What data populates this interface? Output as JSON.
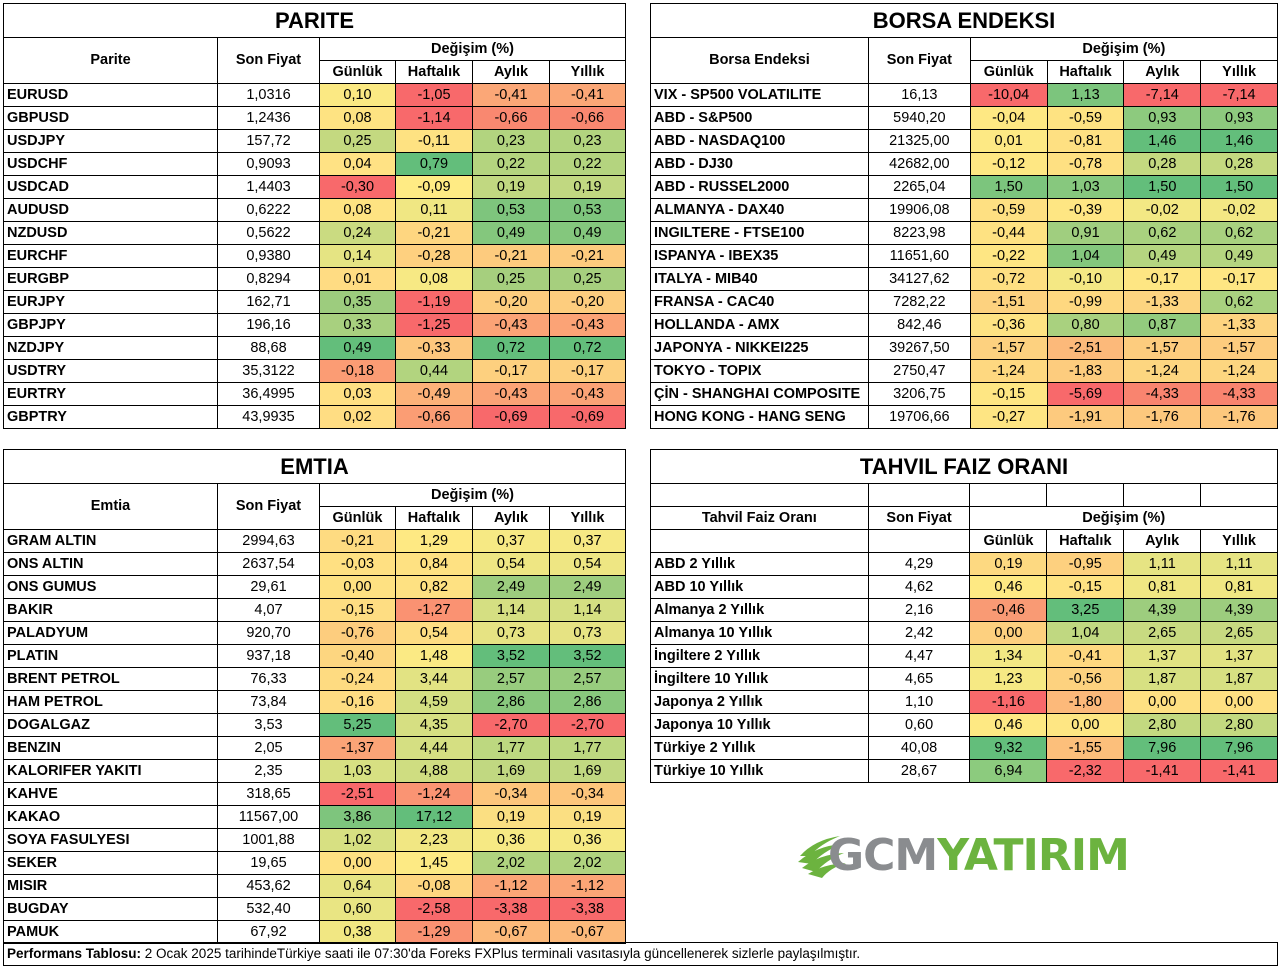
{
  "headers": {
    "degisim": "Değişim (%)",
    "son_fiyat": "Son Fiyat",
    "gunluk": "Günlük",
    "haftalik": "Haftalık",
    "aylik": "Aylık",
    "yillik": "Yıllık"
  },
  "parite": {
    "title": "PARITE",
    "col_name": "Parite",
    "rows": [
      {
        "name": "EURUSD",
        "price": "1,0316",
        "v": [
          "0,10",
          "-1,05",
          "-0,41",
          "-0,41"
        ],
        "c": [
          "#fbe983",
          "#f8696b",
          "#fba777",
          "#fba777"
        ]
      },
      {
        "name": "GBPUSD",
        "price": "1,2436",
        "v": [
          "0,08",
          "-1,14",
          "-0,66",
          "-0,66"
        ],
        "c": [
          "#fee382",
          "#f8696b",
          "#f98870",
          "#f98870"
        ]
      },
      {
        "name": "USDJPY",
        "price": "157,72",
        "v": [
          "0,25",
          "-0,11",
          "0,23",
          "0,23"
        ],
        "c": [
          "#c4d980",
          "#fee282",
          "#b2d47f",
          "#b2d47f"
        ]
      },
      {
        "name": "USDCHF",
        "price": "0,9093",
        "v": [
          "0,04",
          "0,79",
          "0,22",
          "0,22"
        ],
        "c": [
          "#ffe284",
          "#63be7b",
          "#b4d47f",
          "#b4d47f"
        ]
      },
      {
        "name": "USDCAD",
        "price": "1,4403",
        "v": [
          "-0,30",
          "-0,09",
          "0,19",
          "0,19"
        ],
        "c": [
          "#f8696b",
          "#ffeb84",
          "#c1d881",
          "#c1d881"
        ]
      },
      {
        "name": "AUDUSD",
        "price": "0,6222",
        "v": [
          "0,08",
          "0,11",
          "0,53",
          "0,53"
        ],
        "c": [
          "#fee382",
          "#f0e783",
          "#7ec57d",
          "#7ec57d"
        ]
      },
      {
        "name": "NZDUSD",
        "price": "0,5622",
        "v": [
          "0,24",
          "-0,21",
          "0,49",
          "0,49"
        ],
        "c": [
          "#cadb81",
          "#fed680",
          "#84c77d",
          "#84c77d"
        ]
      },
      {
        "name": "EURCHF",
        "price": "0,9380",
        "v": [
          "0,14",
          "-0,28",
          "-0,21",
          "-0,21"
        ],
        "c": [
          "#e5e483",
          "#fed07f",
          "#fdcb7e",
          "#fdcb7e"
        ]
      },
      {
        "name": "EURGBP",
        "price": "0,8294",
        "v": [
          "0,01",
          "0,08",
          "0,25",
          "0,25"
        ],
        "c": [
          "#ffdc83",
          "#f7e984",
          "#a6cf7e",
          "#a6cf7e"
        ]
      },
      {
        "name": "EURJPY",
        "price": "162,71",
        "v": [
          "0,35",
          "-1,19",
          "-0,20",
          "-0,20"
        ],
        "c": [
          "#9dcc7e",
          "#f8696b",
          "#fdcd7e",
          "#fdcd7e"
        ]
      },
      {
        "name": "GBPJPY",
        "price": "196,16",
        "v": [
          "0,33",
          "-1,25",
          "-0,43",
          "-0,43"
        ],
        "c": [
          "#a8d07f",
          "#f8696b",
          "#fba376",
          "#fba376"
        ]
      },
      {
        "name": "NZDJPY",
        "price": "88,68",
        "v": [
          "0,49",
          "-0,33",
          "0,72",
          "0,72"
        ],
        "c": [
          "#63be7b",
          "#fdc77d",
          "#63be7b",
          "#63be7b"
        ]
      },
      {
        "name": "USDTRY",
        "price": "35,3122",
        "v": [
          "-0,18",
          "0,44",
          "-0,17",
          "-0,17"
        ],
        "c": [
          "#fb9c74",
          "#b2d47f",
          "#fdd07f",
          "#fdd07f"
        ]
      },
      {
        "name": "EURTRY",
        "price": "36,4995",
        "v": [
          "0,03",
          "-0,49",
          "-0,43",
          "-0,43"
        ],
        "c": [
          "#ffe083",
          "#fcb279",
          "#fba376",
          "#fba376"
        ]
      },
      {
        "name": "GBPTRY",
        "price": "43,9935",
        "v": [
          "0,02",
          "-0,66",
          "-0,69",
          "-0,69"
        ],
        "c": [
          "#ffdd83",
          "#fb9d74",
          "#f8696b",
          "#f8696b"
        ]
      }
    ]
  },
  "borsa": {
    "title": "BORSA ENDEKSI",
    "col_name": "Borsa Endeksi",
    "rows": [
      {
        "name": "VIX  - SP500 VOLATILITE",
        "price": "16,13",
        "v": [
          "-10,04",
          "1,13",
          "-7,14",
          "-7,14"
        ],
        "c": [
          "#f8696b",
          "#7cc57d",
          "#f8696b",
          "#f8696b"
        ]
      },
      {
        "name": "ABD - S&P500",
        "price": "5940,20",
        "v": [
          "-0,04",
          "-0,59",
          "0,93",
          "0,93"
        ],
        "c": [
          "#fee883",
          "#fee382",
          "#8dca7e",
          "#8dca7e"
        ]
      },
      {
        "name": "ABD - NASDAQ100",
        "price": "21325,00",
        "v": [
          "0,01",
          "-0,81",
          "1,46",
          "1,46"
        ],
        "c": [
          "#fde984",
          "#fee082",
          "#63be7b",
          "#63be7b"
        ]
      },
      {
        "name": "ABD - DJ30",
        "price": "42682,00",
        "v": [
          "-0,12",
          "-0,78",
          "0,28",
          "0,28"
        ],
        "c": [
          "#fee783",
          "#fee082",
          "#c4d980",
          "#c4d980"
        ]
      },
      {
        "name": "ABD - RUSSEL2000",
        "price": "2265,04",
        "v": [
          "1,50",
          "1,03",
          "1,50",
          "1,50"
        ],
        "c": [
          "#7cc57d",
          "#87c87e",
          "#63be7b",
          "#63be7b"
        ]
      },
      {
        "name": "ALMANYA - DAX40",
        "price": "19906,08",
        "v": [
          "-0,59",
          "-0,39",
          "-0,02",
          "-0,02"
        ],
        "c": [
          "#fee082",
          "#fee683",
          "#f3e884",
          "#f3e884"
        ]
      },
      {
        "name": "INGILTERE - FTSE100",
        "price": "8223,98",
        "v": [
          "-0,44",
          "0,91",
          "0,62",
          "0,62"
        ],
        "c": [
          "#fee282",
          "#a0ce7f",
          "#a9d17f",
          "#a9d17f"
        ]
      },
      {
        "name": "ISPANYA - IBEX35",
        "price": "11651,60",
        "v": [
          "-0,22",
          "1,04",
          "0,49",
          "0,49"
        ],
        "c": [
          "#fee683",
          "#84c77d",
          "#b5d580",
          "#b5d580"
        ]
      },
      {
        "name": "ITALYA - MIB40",
        "price": "34127,62",
        "v": [
          "-0,72",
          "-0,10",
          "-0,17",
          "-0,17"
        ],
        "c": [
          "#fedf82",
          "#f4e884",
          "#fee683",
          "#fee683"
        ]
      },
      {
        "name": "FRANSA - CAC40",
        "price": "7282,22",
        "v": [
          "-1,51",
          "-0,99",
          "-1,33",
          "0,62"
        ],
        "c": [
          "#fdd27f",
          "#fed880",
          "#fdd480",
          "#a9d17f"
        ]
      },
      {
        "name": "HOLLANDA - AMX",
        "price": "842,46",
        "v": [
          "-0,36",
          "0,80",
          "0,87",
          "-1,33"
        ],
        "c": [
          "#fee383",
          "#a9d17f",
          "#93cb7e",
          "#fdd480"
        ]
      },
      {
        "name": "JAPONYA - NIKKEI225",
        "price": "39267,50",
        "v": [
          "-1,57",
          "-2,51",
          "-1,57",
          "-1,57"
        ],
        "c": [
          "#fdd17f",
          "#fcb97a",
          "#fdcc7e",
          "#fdcc7e"
        ]
      },
      {
        "name": "TOKYO - TOPIX",
        "price": "2750,47",
        "v": [
          "-1,24",
          "-1,83",
          "-1,24",
          "-1,24"
        ],
        "c": [
          "#fed880",
          "#fdcc7e",
          "#fdd680",
          "#fdd680"
        ]
      },
      {
        "name": "ÇİN - SHANGHAI COMPOSITE",
        "price": "3206,75",
        "v": [
          "-0,15",
          "-5,69",
          "-4,33",
          "-4,33"
        ],
        "c": [
          "#fee683",
          "#f8696b",
          "#f9846f",
          "#f9846f"
        ]
      },
      {
        "name": "HONG KONG - HANG SENG",
        "price": "19706,66",
        "v": [
          "-0,27",
          "-1,91",
          "-1,76",
          "-1,76"
        ],
        "c": [
          "#fee583",
          "#fdca7e",
          "#fdc87d",
          "#fdc87d"
        ]
      }
    ]
  },
  "emtia": {
    "title": "EMTIA",
    "col_name": "Emtia",
    "rows": [
      {
        "name": "GRAM ALTIN",
        "price": "2994,63",
        "v": [
          "-0,21",
          "1,29",
          "0,37",
          "0,37"
        ],
        "c": [
          "#fedb81",
          "#fee983",
          "#f6e984",
          "#f6e984"
        ]
      },
      {
        "name": "ONS ALTIN",
        "price": "2637,54",
        "v": [
          "-0,03",
          "0,84",
          "0,54",
          "0,54"
        ],
        "c": [
          "#ffe082",
          "#fee182",
          "#eee683",
          "#eee683"
        ]
      },
      {
        "name": "ONS GUMUS",
        "price": "29,61",
        "v": [
          "0,00",
          "0,82",
          "2,49",
          "2,49"
        ],
        "c": [
          "#fee182",
          "#fee182",
          "#9dcd7e",
          "#9dcd7e"
        ]
      },
      {
        "name": "BAKIR",
        "price": "4,07",
        "v": [
          "-0,15",
          "-1,27",
          "1,14",
          "1,14"
        ],
        "c": [
          "#fedd82",
          "#fa9272",
          "#d5df82",
          "#d5df82"
        ]
      },
      {
        "name": "PALADYUM",
        "price": "920,70",
        "v": [
          "-0,76",
          "0,54",
          "0,73",
          "0,73"
        ],
        "c": [
          "#fdcd7e",
          "#fedd82",
          "#e6e383",
          "#e6e383"
        ]
      },
      {
        "name": "PLATIN",
        "price": "937,18",
        "v": [
          "-0,40",
          "1,48",
          "3,52",
          "3,52"
        ],
        "c": [
          "#fdd680",
          "#fbea84",
          "#63be7b",
          "#63be7b"
        ]
      },
      {
        "name": "BRENT PETROL",
        "price": "76,33",
        "v": [
          "-0,24",
          "3,44",
          "2,57",
          "2,57"
        ],
        "c": [
          "#fedb81",
          "#e2e383",
          "#98cc7e",
          "#98cc7e"
        ]
      },
      {
        "name": "HAM PETROL",
        "price": "73,84",
        "v": [
          "-0,16",
          "4,59",
          "2,86",
          "2,86"
        ],
        "c": [
          "#fedc82",
          "#d3df82",
          "#89c87d",
          "#89c87d"
        ]
      },
      {
        "name": "DOGALGAZ",
        "price": "3,53",
        "v": [
          "5,25",
          "4,35",
          "-2,70",
          "-2,70"
        ],
        "c": [
          "#63be7b",
          "#d6df82",
          "#f8696b",
          "#f8696b"
        ]
      },
      {
        "name": "BENZIN",
        "price": "2,05",
        "v": [
          "-1,37",
          "4,44",
          "1,77",
          "1,77"
        ],
        "c": [
          "#fba477",
          "#d5df82",
          "#bdd880",
          "#bdd880"
        ]
      },
      {
        "name": "KALORIFER YAKITI",
        "price": "2,35",
        "v": [
          "1,03",
          "4,88",
          "1,69",
          "1,69"
        ],
        "c": [
          "#d7e082",
          "#cfdd81",
          "#c1d881",
          "#c1d881"
        ]
      },
      {
        "name": "KAHVE",
        "price": "318,65",
        "v": [
          "-2,51",
          "-1,24",
          "-0,34",
          "-0,34"
        ],
        "c": [
          "#f8696b",
          "#fa9473",
          "#fdc67c",
          "#fdc67c"
        ]
      },
      {
        "name": "KAKAO",
        "price": "11567,00",
        "v": [
          "3,86",
          "17,12",
          "0,19",
          "0,19"
        ],
        "c": [
          "#7ec57d",
          "#63be7b",
          "#fbdf82",
          "#fbdf82"
        ]
      },
      {
        "name": "SOYA FASULYESI",
        "price": "1001,88",
        "v": [
          "1,02",
          "2,23",
          "0,36",
          "0,36"
        ],
        "c": [
          "#d7e082",
          "#f1e783",
          "#f6e984",
          "#f6e984"
        ]
      },
      {
        "name": "SEKER",
        "price": "19,65",
        "v": [
          "0,00",
          "1,45",
          "2,02",
          "2,02"
        ],
        "c": [
          "#fee182",
          "#fdea84",
          "#b0d37f",
          "#b0d37f"
        ]
      },
      {
        "name": "MISIR",
        "price": "453,62",
        "v": [
          "0,64",
          "-0,08",
          "-1,12",
          "-1,12"
        ],
        "c": [
          "#e7e483",
          "#fed680",
          "#fba576",
          "#fba576"
        ]
      },
      {
        "name": "BUGDAY",
        "price": "532,40",
        "v": [
          "0,60",
          "-2,58",
          "-3,38",
          "-3,38"
        ],
        "c": [
          "#e9e583",
          "#f8696b",
          "#f8696b",
          "#f8696b"
        ]
      },
      {
        "name": "PAMUK",
        "price": "67,92",
        "v": [
          "0,38",
          "-1,29",
          "-0,67",
          "-0,67"
        ],
        "c": [
          "#f1e783",
          "#fa9272",
          "#fcb97a",
          "#fcb97a"
        ]
      }
    ]
  },
  "tahvil": {
    "title": "TAHVIL FAIZ ORANI",
    "col_name": "Tahvil Faiz Oranı",
    "rows": [
      {
        "name": "ABD 2 Yıllık",
        "price": "4,29",
        "v": [
          "0,19",
          "-0,95",
          "1,11",
          "1,11"
        ],
        "c": [
          "#fdd981",
          "#fdd07f",
          "#e6e483",
          "#e6e483"
        ]
      },
      {
        "name": "ABD 10 Yıllık",
        "price": "4,62",
        "v": [
          "0,46",
          "-0,15",
          "0,81",
          "0,81"
        ],
        "c": [
          "#fee983",
          "#fee282",
          "#f0e783",
          "#f0e783"
        ]
      },
      {
        "name": "Almanya 2 Yıllık",
        "price": "2,16",
        "v": [
          "-0,46",
          "3,25",
          "4,39",
          "4,39"
        ],
        "c": [
          "#f99a74",
          "#63be7b",
          "#9dcd7e",
          "#9dcd7e"
        ]
      },
      {
        "name": "Almanya 10 Yıllık",
        "price": "2,42",
        "v": [
          "0,00",
          "1,04",
          "2,65",
          "2,65"
        ],
        "c": [
          "#fdd07f",
          "#c0d881",
          "#c8da81",
          "#c8da81"
        ]
      },
      {
        "name": "İngiltere 2 Yıllık",
        "price": "4,47",
        "v": [
          "1,34",
          "-0,41",
          "1,37",
          "1,37"
        ],
        "c": [
          "#f3e884",
          "#fed880",
          "#e2e383",
          "#e2e383"
        ]
      },
      {
        "name": "İngiltere 10 Yıllık",
        "price": "4,65",
        "v": [
          "1,23",
          "-0,56",
          "1,87",
          "1,87"
        ],
        "c": [
          "#f6e984",
          "#fdd27f",
          "#d7e082",
          "#d7e082"
        ]
      },
      {
        "name": "Japonya 2 Yıllık",
        "price": "1,10",
        "v": [
          "-1,16",
          "-1,80",
          "0,00",
          "0,00"
        ],
        "c": [
          "#f8696b",
          "#fcb97a",
          "#fee082",
          "#fee082"
        ]
      },
      {
        "name": "Japonya 10 Yıllık",
        "price": "0,60",
        "v": [
          "0,46",
          "0,00",
          "2,80",
          "2,80"
        ],
        "c": [
          "#fee983",
          "#fee683",
          "#c3d980",
          "#c3d980"
        ]
      },
      {
        "name": "Türkiye 2 Yıllık",
        "price": "40,08",
        "v": [
          "9,32",
          "-1,55",
          "7,96",
          "7,96"
        ],
        "c": [
          "#63be7b",
          "#fcbf7b",
          "#63be7b",
          "#63be7b"
        ]
      },
      {
        "name": "Türkiye 10 Yıllık",
        "price": "28,67",
        "v": [
          "6,94",
          "-2,32",
          "-1,41",
          "-1,41"
        ],
        "c": [
          "#8ccb7e",
          "#f8696b",
          "#f8696b",
          "#f8696b"
        ]
      }
    ]
  },
  "logo": {
    "text_gcm": "GCM",
    "text_yatirim": "YATIRIM",
    "green": "#6cb33f",
    "grey": "#8a8c8f"
  },
  "footer": {
    "label": "Performans Tablosu:",
    "text": " 2 Ocak 2025 tarihindeTürkiye saati ile 07:30'da Foreks FXPlus terminali vasıtasıyla güncellenerek sizlerle paylaşılmıştır."
  }
}
